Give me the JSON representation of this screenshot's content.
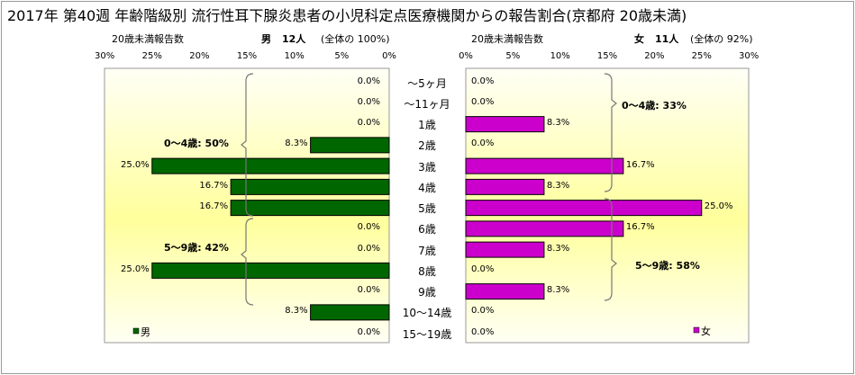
{
  "title": "2017年 第40週 年齢階級別 流行性耳下腺炎患者の小児科定点医療機関からの報告割合(京都府 20歳未満)",
  "male_panel": {
    "subtitle_left": "20歳未満報告数",
    "header_label": "男",
    "header_count": "12人",
    "header_share": "(全体の 100%)",
    "legend": "男",
    "group_labels": [
      "0～4歳: 50%",
      "5～9歳: 42%"
    ]
  },
  "female_panel": {
    "subtitle_left": "20歳未満報告数",
    "header_label": "女",
    "header_count": "11人",
    "header_share": "(全体の 92%)",
    "legend": "女",
    "group_labels": [
      "0～4歳: 33%",
      "5～9歳: 58%"
    ]
  },
  "colors": {
    "male": "#006600",
    "female": "#cc00cc",
    "plot_bg_edge": "#fffff6",
    "plot_bg_center": "#ffff99"
  },
  "chart_data": {
    "type": "bar",
    "orientation": "horizontal-population-pyramid",
    "categories": [
      "～5ヶ月",
      "～11ヶ月",
      "1歳",
      "2歳",
      "3歳",
      "4歳",
      "5歳",
      "6歳",
      "7歳",
      "8歳",
      "9歳",
      "10～14歳",
      "15～19歳"
    ],
    "xlim": [
      0,
      30
    ],
    "xticks": [
      "0%",
      "5%",
      "10%",
      "15%",
      "20%",
      "25%",
      "30%"
    ],
    "series": [
      {
        "name": "男",
        "values": [
          0,
          0,
          0,
          8.3,
          25.0,
          16.7,
          16.7,
          0,
          0,
          25.0,
          0,
          8.3,
          0
        ],
        "labels": [
          "0.0%",
          "0.0%",
          "0.0%",
          "8.3%",
          "25.0%",
          "16.7%",
          "16.7%",
          "0.0%",
          "0.0%",
          "25.0%",
          "0.0%",
          "8.3%",
          "0.0%"
        ]
      },
      {
        "name": "女",
        "values": [
          0,
          0,
          8.3,
          0,
          16.7,
          8.3,
          25.0,
          16.7,
          8.3,
          0,
          8.3,
          0,
          0
        ],
        "labels": [
          "0.0%",
          "0.0%",
          "8.3%",
          "0.0%",
          "16.7%",
          "8.3%",
          "25.0%",
          "16.7%",
          "8.3%",
          "0.0%",
          "8.3%",
          "0.0%",
          "0.0%"
        ]
      }
    ]
  }
}
